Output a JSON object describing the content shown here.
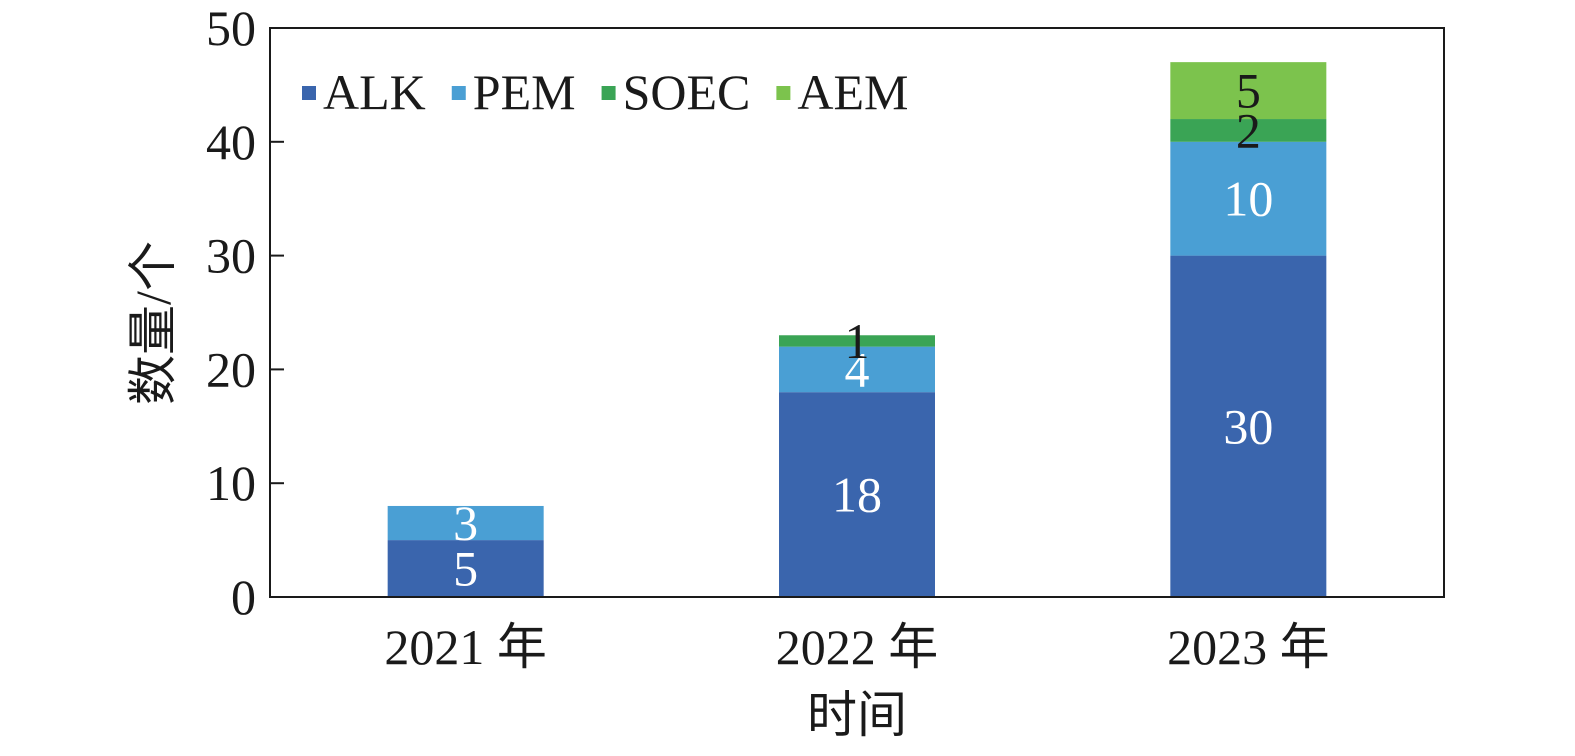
{
  "chart_data": {
    "type": "bar",
    "stacked": true,
    "categories": [
      "2021 年",
      "2022 年",
      "2023 年"
    ],
    "series": [
      {
        "name": "ALK",
        "color": "#3a65ad",
        "values": [
          5,
          18,
          30
        ]
      },
      {
        "name": "PEM",
        "color": "#4a9fd4",
        "values": [
          3,
          4,
          10
        ]
      },
      {
        "name": "SOEC",
        "color": "#3aa455",
        "values": [
          0,
          1,
          2
        ]
      },
      {
        "name": "AEM",
        "color": "#7cc34d",
        "values": [
          0,
          0,
          5
        ]
      }
    ],
    "data_label_colors": {
      "ALK": "#ffffff",
      "PEM": "#ffffff",
      "SOEC": "#1a1a1a",
      "AEM": "#1a1a1a"
    },
    "xlabel": "时间",
    "ylabel": "数量/个",
    "ylim": [
      0,
      50
    ],
    "yticks": [
      0,
      10,
      20,
      30,
      40,
      50
    ],
    "grid": false,
    "legend": {
      "placement": "top-left",
      "orientation": "horizontal"
    }
  }
}
